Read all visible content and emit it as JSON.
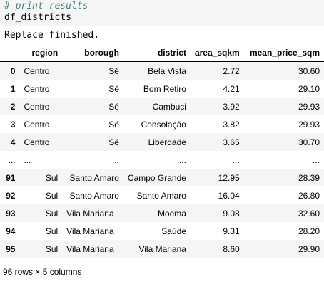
{
  "code_cell": {
    "comment": "# print results",
    "expression": "df_districts"
  },
  "stdout": "Replace finished.",
  "table": {
    "columns": [
      "",
      "region",
      "borough",
      "district",
      "area_sqkm",
      "mean_price_sqm"
    ],
    "rows": [
      [
        "0",
        "Centro",
        "Sé",
        "Bela Vista",
        "2.72",
        "30.60"
      ],
      [
        "1",
        "Centro",
        "Sé",
        "Bom Retiro",
        "4.21",
        "29.10"
      ],
      [
        "2",
        "Centro",
        "Sé",
        "Cambuci",
        "3.92",
        "29.93"
      ],
      [
        "3",
        "Centro",
        "Sé",
        "Consolação",
        "3.82",
        "29.93"
      ],
      [
        "4",
        "Centro",
        "Sé",
        "Liberdade",
        "3.65",
        "30.70"
      ],
      [
        "...",
        "...",
        "...",
        "...",
        "...",
        "..."
      ],
      [
        "91",
        "Sul",
        "Santo Amaro",
        "Campo Grande",
        "12.95",
        "28.39"
      ],
      [
        "92",
        "Sul",
        "Santo Amaro",
        "Santo Amaro",
        "16.04",
        "26.80"
      ],
      [
        "93",
        "Sul",
        "Vila Mariana",
        "Moema",
        "9.08",
        "32.60"
      ],
      [
        "94",
        "Sul",
        "Vila Mariana",
        "Saúde",
        "9.31",
        "28.20"
      ],
      [
        "95",
        "Sul",
        "Vila Mariana",
        "Vila Mariana",
        "8.60",
        "29.90"
      ]
    ]
  },
  "footer": "96 rows × 5 columns"
}
